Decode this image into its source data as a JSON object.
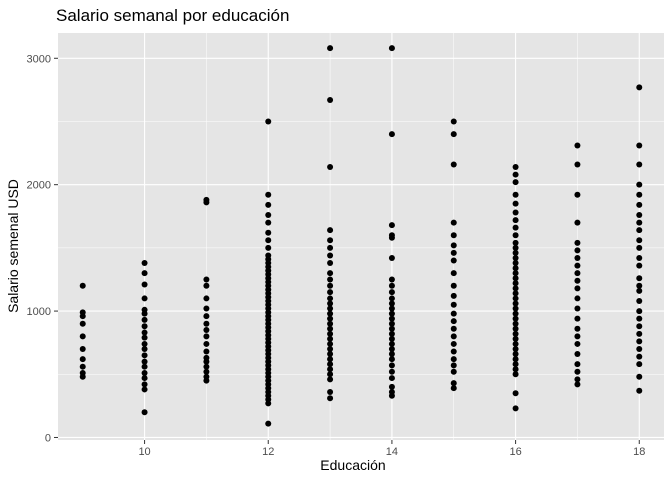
{
  "chart_data": {
    "type": "scatter",
    "title": "Salario semanal por educación",
    "xlabel": "Educación",
    "ylabel": "Salario semenal USD",
    "xlim": [
      8.6,
      18.4
    ],
    "ylim": [
      -20,
      3200
    ],
    "x_ticks": [
      10,
      12,
      14,
      16,
      18
    ],
    "y_ticks": [
      0,
      1000,
      2000,
      3000
    ],
    "x_tick_labels": [
      "10",
      "12",
      "14",
      "16",
      "18"
    ],
    "y_tick_labels": [
      "0",
      "1000",
      "2000",
      "3000"
    ],
    "grid": true,
    "legend": "none",
    "colors": {
      "panel": "#e5e5e5",
      "grid": "#ffffff",
      "point": "#000000",
      "tick": "#333333"
    },
    "points": {
      "9": [
        480,
        510,
        560,
        620,
        700,
        800,
        900,
        960,
        990,
        1200
      ],
      "10": [
        200,
        380,
        420,
        470,
        510,
        560,
        600,
        650,
        700,
        740,
        790,
        830,
        880,
        930,
        980,
        1010,
        1100,
        1210,
        1300,
        1380
      ],
      "11": [
        450,
        480,
        520,
        560,
        600,
        630,
        680,
        740,
        800,
        850,
        900,
        960,
        1020,
        1100,
        1200,
        1250,
        1860,
        1880
      ],
      "12": [
        110,
        270,
        300,
        330,
        360,
        390,
        420,
        450,
        480,
        510,
        540,
        570,
        600,
        630,
        660,
        690,
        720,
        750,
        780,
        810,
        840,
        870,
        900,
        930,
        960,
        990,
        1020,
        1050,
        1080,
        1110,
        1140,
        1170,
        1200,
        1230,
        1260,
        1290,
        1320,
        1350,
        1380,
        1410,
        1440,
        1500,
        1560,
        1620,
        1700,
        1760,
        1840,
        1920,
        2500
      ],
      "13": [
        310,
        360,
        460,
        500,
        540,
        580,
        620,
        660,
        700,
        740,
        780,
        820,
        860,
        900,
        940,
        980,
        1020,
        1060,
        1100,
        1150,
        1200,
        1250,
        1300,
        1380,
        1440,
        1500,
        1560,
        1640,
        2140,
        2670,
        3080
      ],
      "14": [
        330,
        360,
        400,
        470,
        520,
        570,
        620,
        660,
        700,
        740,
        780,
        820,
        860,
        900,
        940,
        980,
        1020,
        1060,
        1100,
        1150,
        1200,
        1250,
        1420,
        1580,
        1600,
        1680,
        2400,
        3080
      ],
      "15": [
        390,
        430,
        520,
        570,
        620,
        680,
        740,
        800,
        860,
        920,
        980,
        1050,
        1120,
        1200,
        1300,
        1400,
        1460,
        1520,
        1600,
        1700,
        2160,
        2400,
        2500
      ],
      "16": [
        230,
        350,
        500,
        540,
        580,
        620,
        660,
        700,
        740,
        780,
        820,
        860,
        900,
        940,
        980,
        1020,
        1060,
        1100,
        1140,
        1180,
        1220,
        1260,
        1300,
        1340,
        1380,
        1420,
        1460,
        1500,
        1540,
        1600,
        1660,
        1720,
        1780,
        1850,
        1920,
        2020,
        2080,
        2140
      ],
      "17": [
        420,
        460,
        520,
        580,
        660,
        740,
        800,
        860,
        940,
        1020,
        1100,
        1180,
        1240,
        1300,
        1360,
        1420,
        1480,
        1540,
        1700,
        1920,
        2160,
        2310
      ],
      "18": [
        370,
        480,
        580,
        640,
        700,
        760,
        820,
        880,
        940,
        1000,
        1080,
        1160,
        1200,
        1260,
        1360,
        1420,
        1500,
        1560,
        1640,
        1700,
        1760,
        1840,
        1920,
        2000,
        2160,
        2310,
        2770
      ]
    }
  }
}
